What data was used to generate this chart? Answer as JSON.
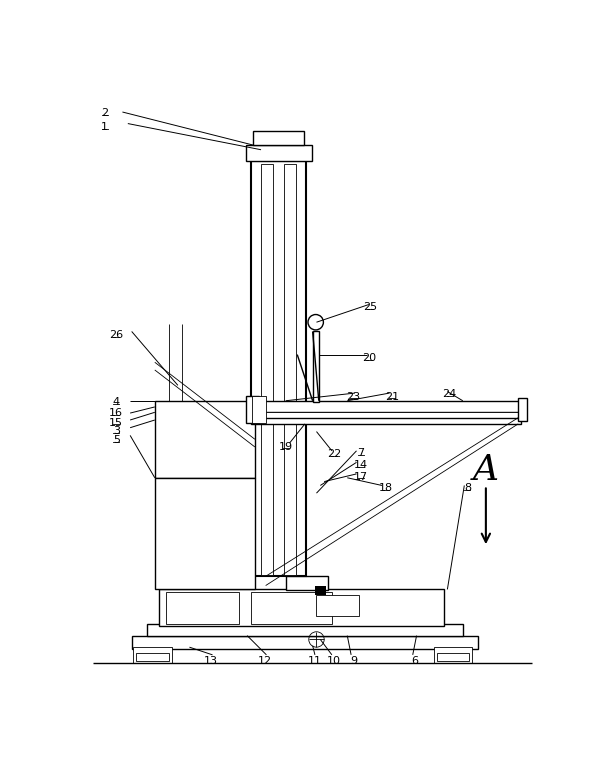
{
  "fig_width": 6.1,
  "fig_height": 7.73,
  "dpi": 100,
  "line_color": "#000000",
  "bg_color": "#ffffff",
  "lw_thick": 1.5,
  "lw_med": 1.0,
  "lw_thin": 0.6
}
